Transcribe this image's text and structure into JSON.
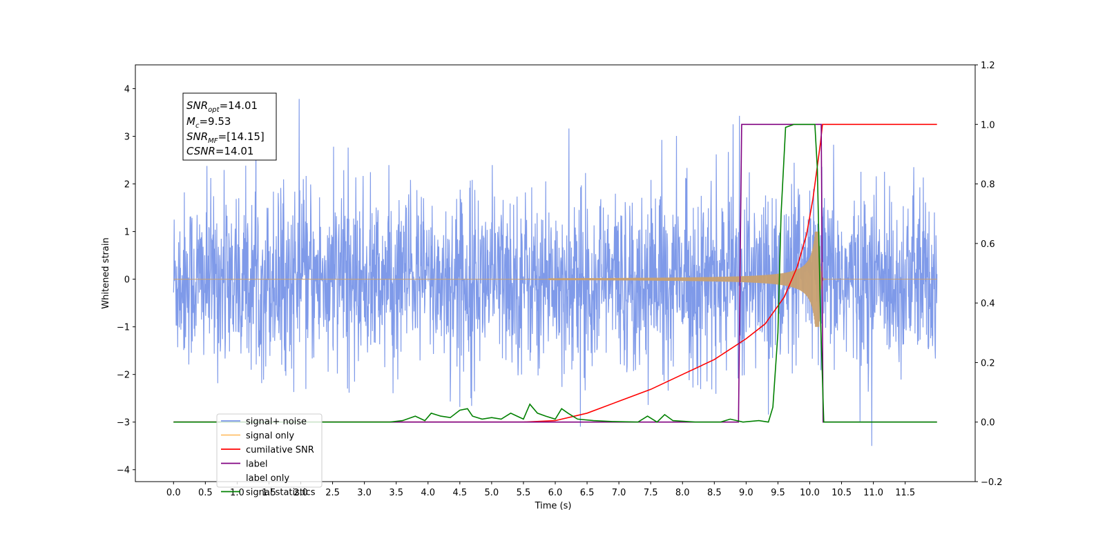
{
  "chart_data": {
    "type": "line",
    "xlabel": "Time (s)",
    "ylabel": "Whitened strain",
    "xlim": [
      -0.6,
      12.6
    ],
    "ylim_left": [
      -4.25,
      4.5
    ],
    "ylim_right": [
      -0.2,
      1.2
    ],
    "x_ticks": [
      "0.0",
      "0.5",
      "1.0",
      "1.5",
      "2.0",
      "2.5",
      "3.0",
      "3.5",
      "4.0",
      "4.5",
      "5.0",
      "5.5",
      "6.0",
      "6.5",
      "7.0",
      "7.5",
      "8.0",
      "8.5",
      "9.0",
      "9.5",
      "10.0",
      "10.5",
      "11.0",
      "11.5"
    ],
    "y_ticks_left": [
      "4",
      "3",
      "2",
      "1",
      "0",
      "−1",
      "−2",
      "−3",
      "−4"
    ],
    "y_ticks_right": [
      "1.2",
      "1.0",
      "0.8",
      "0.6",
      "0.4",
      "0.2",
      "0.0",
      "−0.2"
    ],
    "annotation": {
      "snr_opt": {
        "name": "SNR",
        "sub": "opt",
        "value": "=14.01"
      },
      "mc": {
        "name": "M",
        "sub": "c",
        "value": "=9.53"
      },
      "snr_mf": {
        "name": "SNR",
        "sub": "MF",
        "value": "=[14.15]"
      },
      "csnr": {
        "name": "CSNR",
        "sub": "",
        "value": "=14.01"
      }
    },
    "series": [
      {
        "name": "signal+ noise",
        "color": "#7895e8",
        "axis": "left",
        "note": "whitened noise, amplitude about ±2, spikes up to about 4.1",
        "t_range": [
          0.0,
          12.0
        ]
      },
      {
        "name": "signal only",
        "color": "#ffbf69",
        "axis": "left",
        "note": "chirp starting near t=6.0, amplitude growing to about 1.0 at t=10.15, ringdown after",
        "t_range": [
          0.0,
          12.0
        ]
      },
      {
        "name": "cumilative SNR",
        "color": "#ff0000",
        "axis": "right",
        "points": [
          [
            0.0,
            0.0
          ],
          [
            5.5,
            0.0
          ],
          [
            6.0,
            0.005
          ],
          [
            6.5,
            0.03
          ],
          [
            7.0,
            0.07
          ],
          [
            7.5,
            0.11
          ],
          [
            8.0,
            0.16
          ],
          [
            8.5,
            0.21
          ],
          [
            9.0,
            0.28
          ],
          [
            9.3,
            0.33
          ],
          [
            9.6,
            0.42
          ],
          [
            9.8,
            0.52
          ],
          [
            9.95,
            0.63
          ],
          [
            10.05,
            0.75
          ],
          [
            10.12,
            0.86
          ],
          [
            10.17,
            0.94
          ],
          [
            10.2,
            1.0
          ],
          [
            12.0,
            1.0
          ]
        ]
      },
      {
        "name": "label",
        "color": "#800080",
        "axis": "right",
        "points": [
          [
            0.0,
            0.0
          ],
          [
            8.88,
            0.0
          ],
          [
            8.93,
            1.0
          ],
          [
            10.18,
            1.0
          ],
          [
            10.21,
            0.0
          ],
          [
            12.0,
            0.0
          ]
        ]
      },
      {
        "name": "label only",
        "color": "#000000",
        "axis": "right",
        "hidden": true
      },
      {
        "name": "signal statistics",
        "color": "#008000",
        "axis": "right",
        "points": [
          [
            0.0,
            0.0
          ],
          [
            3.4,
            0.0
          ],
          [
            3.6,
            0.005
          ],
          [
            3.8,
            0.02
          ],
          [
            3.95,
            0.005
          ],
          [
            4.05,
            0.03
          ],
          [
            4.2,
            0.02
          ],
          [
            4.35,
            0.015
          ],
          [
            4.5,
            0.04
          ],
          [
            4.62,
            0.045
          ],
          [
            4.7,
            0.02
          ],
          [
            4.85,
            0.01
          ],
          [
            5.0,
            0.015
          ],
          [
            5.15,
            0.01
          ],
          [
            5.3,
            0.03
          ],
          [
            5.4,
            0.02
          ],
          [
            5.5,
            0.01
          ],
          [
            5.6,
            0.06
          ],
          [
            5.72,
            0.03
          ],
          [
            5.85,
            0.02
          ],
          [
            6.0,
            0.01
          ],
          [
            6.1,
            0.045
          ],
          [
            6.2,
            0.03
          ],
          [
            6.35,
            0.01
          ],
          [
            6.6,
            0.005
          ],
          [
            6.9,
            0.002
          ],
          [
            7.3,
            0.0
          ],
          [
            7.45,
            0.02
          ],
          [
            7.6,
            0.0
          ],
          [
            7.72,
            0.025
          ],
          [
            7.85,
            0.005
          ],
          [
            8.2,
            0.0
          ],
          [
            8.6,
            0.0
          ],
          [
            8.75,
            0.01
          ],
          [
            8.95,
            0.0
          ],
          [
            9.2,
            0.005
          ],
          [
            9.35,
            0.0
          ],
          [
            9.42,
            0.05
          ],
          [
            9.5,
            0.3
          ],
          [
            9.55,
            0.7
          ],
          [
            9.62,
            0.99
          ],
          [
            9.75,
            1.0
          ],
          [
            10.08,
            1.0
          ],
          [
            10.12,
            0.85
          ],
          [
            10.17,
            0.35
          ],
          [
            10.22,
            0.0
          ],
          [
            12.0,
            0.0
          ]
        ]
      }
    ],
    "legend": {
      "placement": "lower-left",
      "entries": [
        "signal+ noise",
        "signal only",
        "cumilative SNR",
        "label",
        "label only",
        "signal statistics"
      ]
    },
    "grid": false
  }
}
